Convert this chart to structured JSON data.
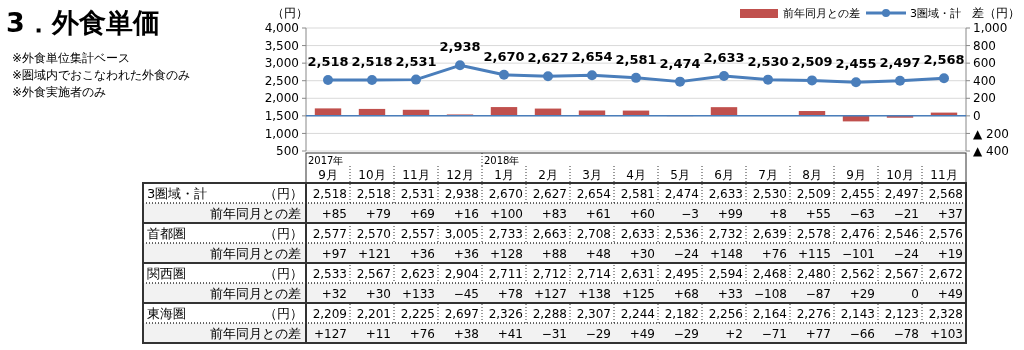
{
  "chart_data": {
    "type": "bar",
    "title": "3．外食単価",
    "annotations": [
      "※外食単位集計ベース",
      "※圏域内でおこなわれた外食のみ",
      "※外食実施者のみ",
      "2017年",
      "2018年"
    ],
    "ref_lines": [
      {
        "axis": "y2",
        "value": 0,
        "color": "#4a7ebb"
      }
    ],
    "ylabel": "（円）",
    "y2label": "差（円）",
    "categories": [
      "9月",
      "10月",
      "11月",
      "12月",
      "1月",
      "2月",
      "3月",
      "4月",
      "5月",
      "6月",
      "7月",
      "8月",
      "9月",
      "10月",
      "11月"
    ],
    "series": [
      {
        "name": "3圏域・計",
        "type": "line",
        "color": "#4a7ebb",
        "axis": "y",
        "values": [
          2518,
          2518,
          2531,
          2938,
          2670,
          2627,
          2654,
          2581,
          2474,
          2633,
          2530,
          2509,
          2455,
          2497,
          2568
        ],
        "value_labels": [
          "2,518",
          "2,518",
          "2,531",
          "2,938",
          "2,670",
          "2,627",
          "2,654",
          "2,581",
          "2,474",
          "2,633",
          "2,530",
          "2,509",
          "2,455",
          "2,497",
          "2,568"
        ]
      },
      {
        "name": "前年同月との差",
        "color": "#c0504d",
        "axis": "y2",
        "values": [
          85,
          79,
          69,
          16,
          100,
          83,
          61,
          60,
          -3,
          99,
          8,
          55,
          -63,
          -21,
          37
        ],
        "value_labels": [
          "+85",
          "+79",
          "+69",
          "+16",
          "+100",
          "+83",
          "+61",
          "+60",
          "−3",
          "+99",
          "+8",
          "+55",
          "−63",
          "−21",
          "+37"
        ]
      },
      {
        "name": "首都圏",
        "type": "other",
        "values": [
          null,
          null,
          null,
          null,
          null,
          null,
          null,
          null,
          null,
          null,
          null,
          null,
          null,
          null,
          null
        ],
        "value_labels": [
          "2,577",
          "2,570",
          "2,557",
          "3,005",
          "2,733",
          "2,663",
          "2,708",
          "2,633",
          "2,536",
          "2,732",
          "2,639",
          "2,578",
          "2,476",
          "2,546",
          "2,576"
        ]
      },
      {
        "name": "前年同月との差",
        "type": "other",
        "values": [
          null,
          null,
          null,
          null,
          null,
          null,
          null,
          null,
          null,
          null,
          null,
          null,
          null,
          null,
          null
        ],
        "value_labels": [
          "+97",
          "+121",
          "+36",
          "+36",
          "+128",
          "+88",
          "+48",
          "+30",
          "−24",
          "+148",
          "+76",
          "+115",
          "−101",
          "−24",
          "+19"
        ]
      },
      {
        "name": "関西圏",
        "type": "other",
        "values": [
          null,
          null,
          null,
          null,
          null,
          null,
          null,
          null,
          null,
          null,
          null,
          null,
          null,
          null,
          null
        ],
        "value_labels": [
          "2,533",
          "2,567",
          "2,623",
          "2,904",
          "2,711",
          "2,712",
          "2,714",
          "2,631",
          "2,495",
          "2,594",
          "2,468",
          "2,480",
          "2,562",
          "2,567",
          "2,672"
        ]
      },
      {
        "name": "前年同月との差",
        "type": "other",
        "values": [
          null,
          null,
          null,
          null,
          null,
          null,
          null,
          null,
          null,
          null,
          null,
          null,
          null,
          null,
          null
        ],
        "value_labels": [
          "+32",
          "+30",
          "+133",
          "−45",
          "+78",
          "+127",
          "+138",
          "+125",
          "+68",
          "+33",
          "−108",
          "−87",
          "+29",
          "0",
          "+49"
        ]
      },
      {
        "name": "東海圏",
        "type": "other",
        "values": [
          null,
          null,
          null,
          null,
          null,
          null,
          null,
          null,
          null,
          null,
          null,
          null,
          null,
          null,
          null
        ],
        "value_labels": [
          "2,209",
          "2,201",
          "2,225",
          "2,697",
          "2,326",
          "2,288",
          "2,307",
          "2,244",
          "2,182",
          "2,256",
          "2,164",
          "2,276",
          "2,143",
          "2,123",
          "2,328"
        ]
      },
      {
        "name": "前年同月との差",
        "type": "other",
        "values": [
          null,
          null,
          null,
          null,
          null,
          null,
          null,
          null,
          null,
          null,
          null,
          null,
          null,
          null,
          null
        ],
        "value_labels": [
          "+127",
          "+11",
          "+76",
          "+38",
          "+41",
          "−31",
          "−29",
          "+49",
          "−29",
          "+2",
          "−71",
          "+77",
          "−66",
          "−78",
          "+103"
        ]
      }
    ],
    "ylim": [
      500,
      4000
    ],
    "yticks": [
      {
        "value": 500,
        "label": "500"
      },
      {
        "value": 1000,
        "label": "1,000"
      },
      {
        "value": 1500,
        "label": "1,500"
      },
      {
        "value": 2000,
        "label": "2,000"
      },
      {
        "value": 2500,
        "label": "2,500"
      },
      {
        "value": 3000,
        "label": "3,000"
      },
      {
        "value": 3500,
        "label": "3,500"
      },
      {
        "value": 4000,
        "label": "4,000"
      }
    ],
    "y2lim": [
      -400,
      1000
    ],
    "y2ticks": [
      {
        "value": -400,
        "label": "▲ 400"
      },
      {
        "value": -200,
        "label": "▲ 200"
      },
      0,
      200,
      400,
      600,
      800,
      {
        "value": 1000,
        "label": "1,000"
      }
    ],
    "grid": "y",
    "legend": "top right",
    "marker": "circle",
    "line_style": "solid"
  }
}
